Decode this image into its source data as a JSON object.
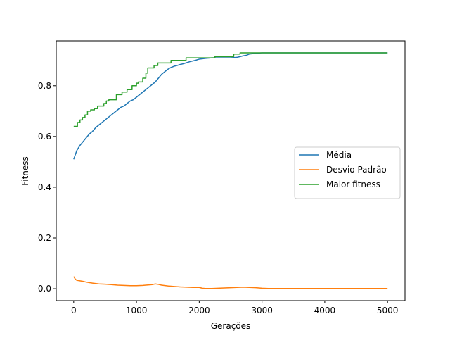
{
  "chart_data": {
    "type": "line",
    "xlabel": "Gerações",
    "ylabel": "Fitness",
    "xlim": [
      -278,
      5278
    ],
    "ylim": [
      -0.047,
      0.977
    ],
    "xticks": [
      0,
      1000,
      2000,
      3000,
      4000,
      5000
    ],
    "xtick_labels": [
      "0",
      "1000",
      "2000",
      "3000",
      "4000",
      "5000"
    ],
    "yticks": [
      0.0,
      0.2,
      0.4,
      0.6,
      0.8
    ],
    "ytick_labels": [
      "0.0",
      "0.2",
      "0.4",
      "0.6",
      "0.8"
    ],
    "grid": false,
    "legend": "center-right",
    "series": [
      {
        "name": "Média",
        "color": "#1f77b4",
        "step": false,
        "x": [
          0,
          50,
          100,
          150,
          200,
          250,
          300,
          350,
          400,
          450,
          500,
          550,
          600,
          650,
          700,
          750,
          800,
          850,
          900,
          950,
          1000,
          1050,
          1100,
          1150,
          1200,
          1250,
          1300,
          1350,
          1400,
          1450,
          1500,
          1550,
          1600,
          1650,
          1700,
          1750,
          1800,
          1850,
          1900,
          1950,
          2000,
          2100,
          2200,
          2300,
          2400,
          2500,
          2600,
          2650,
          2700,
          2750,
          2800,
          2900,
          3000,
          3100,
          4000,
          5000
        ],
        "y": [
          0.51,
          0.545,
          0.565,
          0.58,
          0.595,
          0.61,
          0.62,
          0.635,
          0.645,
          0.655,
          0.665,
          0.675,
          0.685,
          0.695,
          0.705,
          0.715,
          0.72,
          0.73,
          0.74,
          0.745,
          0.755,
          0.765,
          0.775,
          0.785,
          0.795,
          0.805,
          0.815,
          0.83,
          0.845,
          0.855,
          0.865,
          0.872,
          0.877,
          0.88,
          0.884,
          0.887,
          0.891,
          0.895,
          0.898,
          0.901,
          0.905,
          0.908,
          0.91,
          0.91,
          0.91,
          0.91,
          0.912,
          0.915,
          0.918,
          0.92,
          0.925,
          0.928,
          0.93,
          0.93,
          0.93,
          0.93
        ]
      },
      {
        "name": "Desvio Padrão",
        "color": "#ff7f0e",
        "step": false,
        "x": [
          0,
          25,
          50,
          100,
          150,
          200,
          300,
          400,
          500,
          600,
          700,
          800,
          900,
          1000,
          1100,
          1200,
          1250,
          1300,
          1350,
          1400,
          1500,
          1600,
          1700,
          1800,
          1900,
          2000,
          2050,
          2100,
          2200,
          2300,
          2400,
          2500,
          2600,
          2700,
          2800,
          2900,
          3000,
          3100,
          4000,
          5000
        ],
        "y": [
          0.048,
          0.038,
          0.033,
          0.031,
          0.029,
          0.026,
          0.022,
          0.019,
          0.018,
          0.016,
          0.014,
          0.013,
          0.012,
          0.012,
          0.013,
          0.015,
          0.016,
          0.019,
          0.017,
          0.014,
          0.011,
          0.009,
          0.007,
          0.006,
          0.005,
          0.005,
          0.002,
          0.001,
          0.001,
          0.002,
          0.003,
          0.004,
          0.005,
          0.006,
          0.005,
          0.004,
          0.002,
          0.001,
          0.001,
          0.001
        ]
      },
      {
        "name": "Maior fitness",
        "color": "#2ca02c",
        "step": true,
        "x": [
          0,
          60,
          100,
          140,
          180,
          220,
          270,
          330,
          380,
          480,
          520,
          560,
          680,
          770,
          850,
          930,
          1000,
          1030,
          1100,
          1150,
          1180,
          1280,
          1340,
          1550,
          1790,
          2000,
          2250,
          2550,
          2650,
          2980,
          5000
        ],
        "y": [
          0.64,
          0.655,
          0.665,
          0.675,
          0.685,
          0.7,
          0.705,
          0.71,
          0.72,
          0.73,
          0.74,
          0.745,
          0.765,
          0.775,
          0.785,
          0.8,
          0.81,
          0.815,
          0.83,
          0.85,
          0.87,
          0.88,
          0.89,
          0.9,
          0.91,
          0.91,
          0.915,
          0.925,
          0.93,
          0.93,
          0.93
        ]
      }
    ]
  }
}
